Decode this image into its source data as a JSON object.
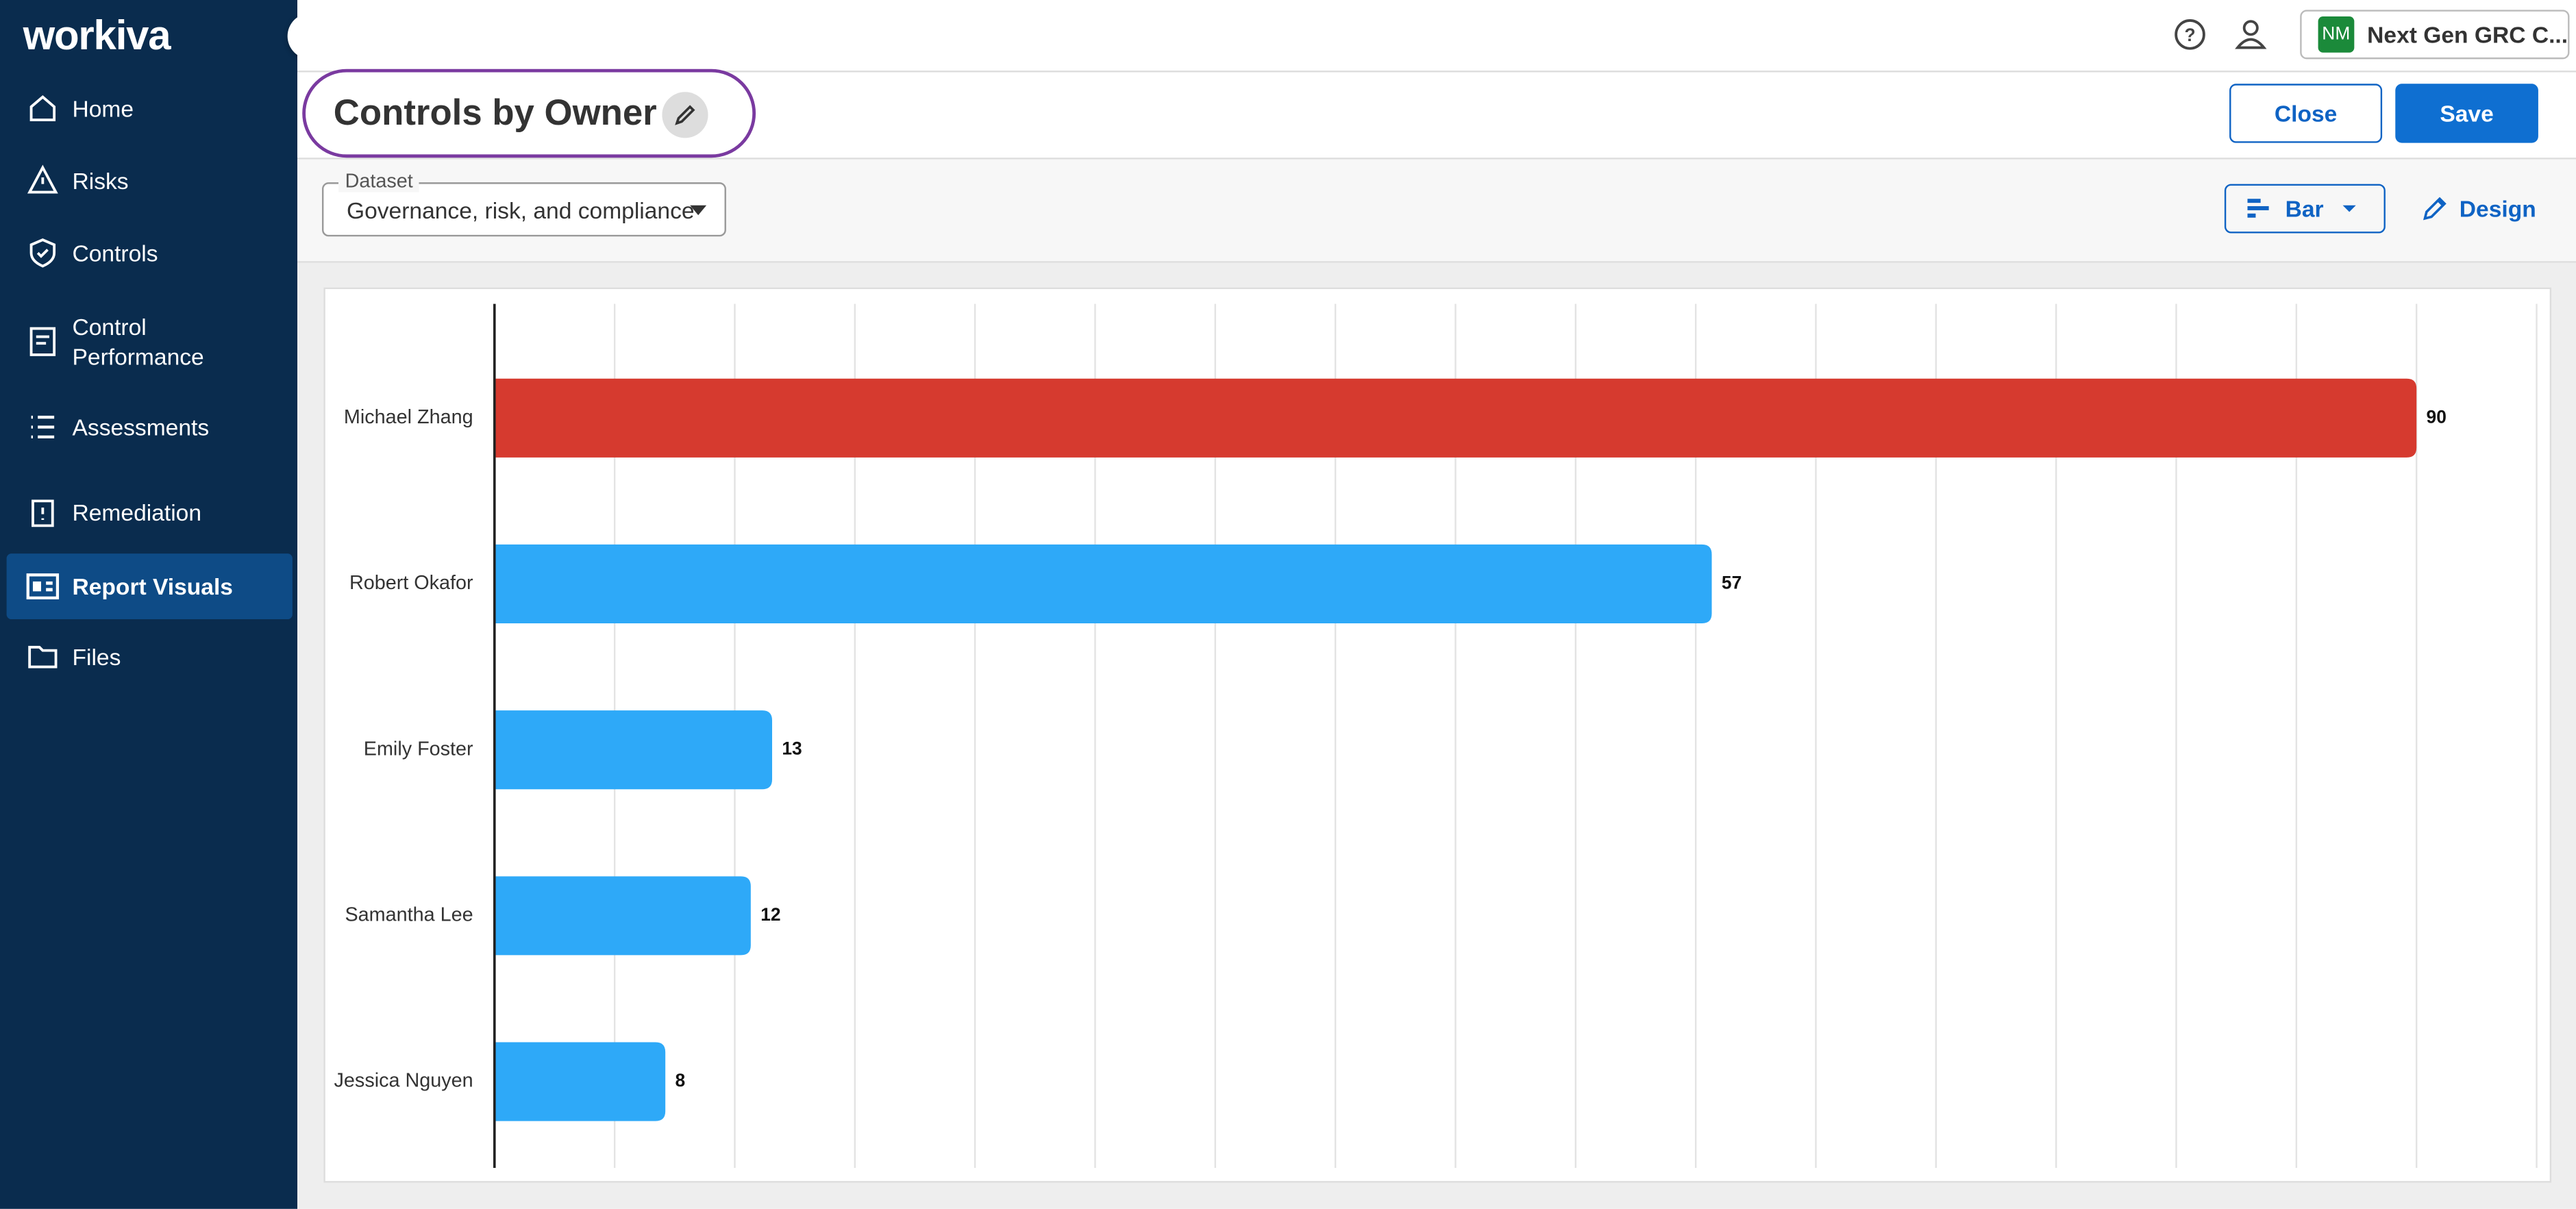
{
  "app": {
    "logo": "workiva",
    "nav": [
      "Home",
      "Risks",
      "Controls",
      "Control Performance",
      "Assessments",
      "Remediation",
      "Report Visuals",
      "Files"
    ],
    "account": {
      "initials": "NM",
      "name": "Next Gen GRC C..."
    }
  },
  "header": {
    "title": "Controls by Owner",
    "close": "Close",
    "save": "Save"
  },
  "toolbar": {
    "dataset_label": "Dataset",
    "dataset_value": "Governance, risk, and compliance",
    "chart_type": "Bar",
    "design": "Design"
  },
  "chart_data": {
    "type": "hbar",
    "categories": [
      "Michael Zhang",
      "Robert Okafor",
      "Emily Foster",
      "Samantha Lee",
      "Jessica Nguyen"
    ],
    "values": [
      90,
      57,
      13,
      12,
      8
    ],
    "colors": [
      "#d63a2f",
      "#2ea9f8",
      "#2ea9f8",
      "#2ea9f8",
      "#2ea9f8"
    ],
    "xlim": [
      0,
      95.625
    ],
    "xticks": [
      0,
      5.625,
      11.25,
      16.875,
      22.5,
      28.125,
      33.75,
      39.375,
      45,
      50.625,
      56.25,
      61.875,
      67.5,
      73.125,
      78.75,
      84.375,
      90,
      95.625
    ],
    "grid": true
  }
}
